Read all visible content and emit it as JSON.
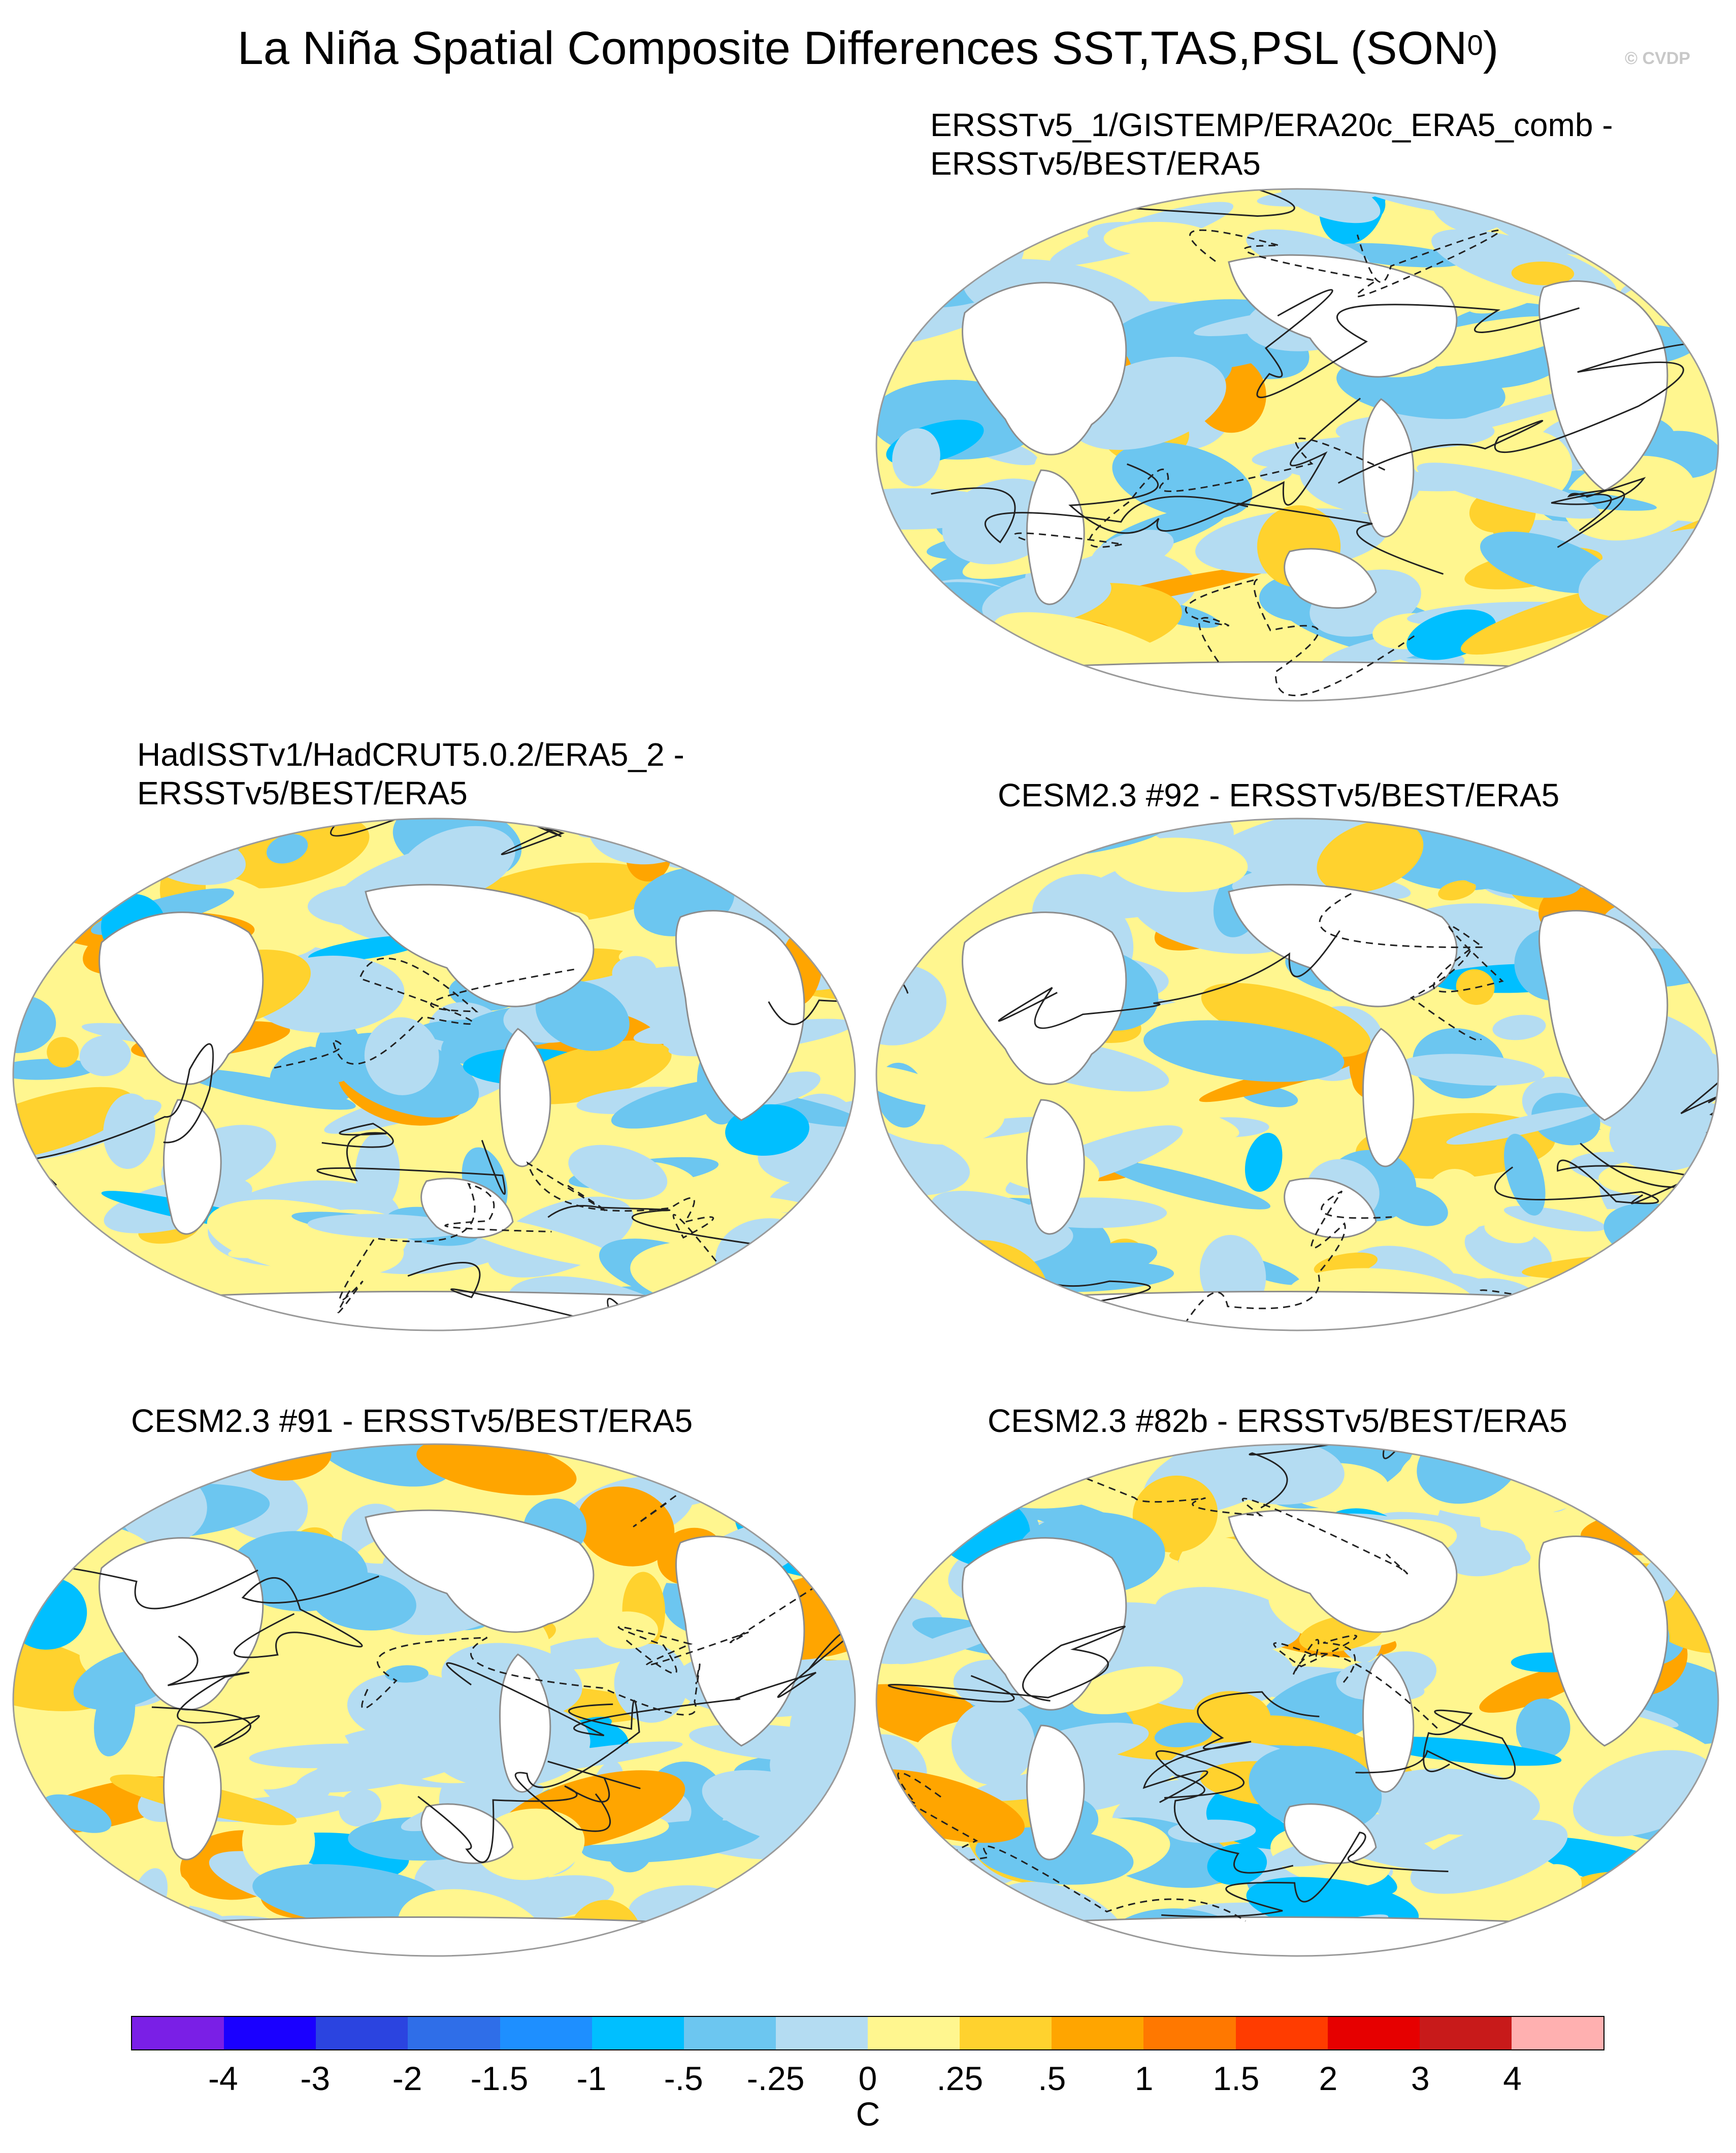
{
  "title": {
    "main": "La Niña Spatial Composite Differences SST,TAS,PSL (SON",
    "sup": "0",
    "end": ")"
  },
  "watermark": "© CVDP",
  "panels": [
    {
      "id": "p1",
      "title_line1": "ERSSTv5_1/GISTEMP/ERA20c_ERA5_comb -",
      "title_line2": "ERSSTv5/BEST/ERA5"
    },
    {
      "id": "p2",
      "title_line1": "HadISSTv1/HadCRUT5.0.2/ERA5_2 -",
      "title_line2": "ERSSTv5/BEST/ERA5"
    },
    {
      "id": "p3",
      "title_line1": "CESM2.3 #92 - ERSSTv5/BEST/ERA5",
      "title_line2": ""
    },
    {
      "id": "p4",
      "title_line1": "CESM2.3 #91 - ERSSTv5/BEST/ERA5",
      "title_line2": ""
    },
    {
      "id": "p5",
      "title_line1": "CESM2.3 #82b - ERSSTv5/BEST/ERA5",
      "title_line2": ""
    }
  ],
  "colorbar": {
    "labels": [
      "-4",
      "-3",
      "-2",
      "-1.5",
      "-1",
      "-.5",
      "-.25",
      "0",
      ".25",
      ".5",
      "1",
      "1.5",
      "2",
      "3",
      "4"
    ],
    "colors": [
      "#7a1fe6",
      "#1a00ff",
      "#2b44e0",
      "#2f6ee8",
      "#1e8fff",
      "#00bfff",
      "#6cc6f0",
      "#b4dcf2",
      "#fff68f",
      "#ffd22e",
      "#ffa500",
      "#ff7800",
      "#ff3c00",
      "#e60000",
      "#c81a1a",
      "#ffb0b0"
    ],
    "units": "C"
  }
}
